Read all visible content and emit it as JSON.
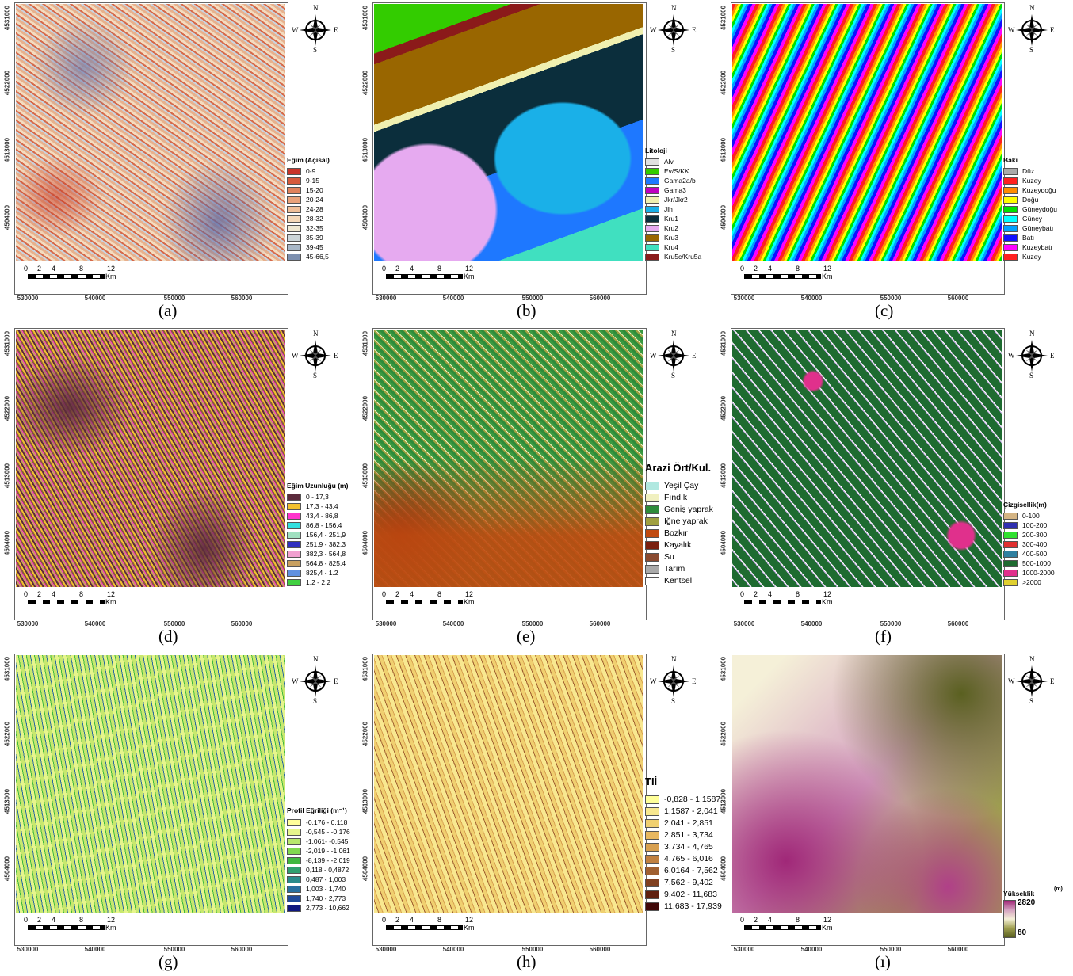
{
  "axes": {
    "y_ticks": [
      "4531000",
      "4522000",
      "4513000",
      "4504000"
    ],
    "x_ticks": [
      "530000",
      "540000",
      "550000",
      "560000"
    ]
  },
  "scale_bar": {
    "labels": [
      "0",
      "2",
      "4",
      "8",
      "12"
    ],
    "unit": "Km"
  },
  "compass": {
    "north": "N",
    "south": "S",
    "west": "W",
    "east": "E"
  },
  "panels": [
    {
      "caption": "(a)",
      "legend_title": "Eğim (Açısal)",
      "legend_items": [
        {
          "label": "0-9",
          "color": "#c8342a"
        },
        {
          "label": "9-15",
          "color": "#d65a3c"
        },
        {
          "label": "15-20",
          "color": "#e0825c"
        },
        {
          "label": "20-24",
          "color": "#e9a27a"
        },
        {
          "label": "24-28",
          "color": "#f0bf98"
        },
        {
          "label": "28-32",
          "color": "#f5d8b8"
        },
        {
          "label": "32-35",
          "color": "#efe8d2"
        },
        {
          "label": "35-39",
          "color": "#ccd5d8"
        },
        {
          "label": "39-45",
          "color": "#a9b8c8"
        },
        {
          "label": "45-66,5",
          "color": "#7d90b0"
        }
      ]
    },
    {
      "caption": "(b)",
      "legend_title": "Litoloji",
      "legend_items": [
        {
          "label": "Alv",
          "color": "#e0e0e0"
        },
        {
          "label": "Ev/S/KK",
          "color": "#33cc00"
        },
        {
          "label": "Gama2a/b",
          "color": "#1e78ff"
        },
        {
          "label": "Gama3",
          "color": "#c000c0"
        },
        {
          "label": "Jkr/Jkr2",
          "color": "#f0f0b0"
        },
        {
          "label": "Jlh",
          "color": "#1ab0e8"
        },
        {
          "label": "Kru1",
          "color": "#0b2e3c"
        },
        {
          "label": "Kru2",
          "color": "#e6aaf0"
        },
        {
          "label": "Kru3",
          "color": "#996600"
        },
        {
          "label": "Kru4",
          "color": "#40e0c0"
        },
        {
          "label": "Kru5c/Kru5a",
          "color": "#8b1a1a"
        }
      ]
    },
    {
      "caption": "(c)",
      "legend_title": "Bakı",
      "legend_items": [
        {
          "label": "Düz",
          "color": "#aaaaaa"
        },
        {
          "label": "Kuzey",
          "color": "#ff2020"
        },
        {
          "label": "Kuzeydoğu",
          "color": "#ff8c00"
        },
        {
          "label": "Doğu",
          "color": "#ffff00"
        },
        {
          "label": "Güneydoğu",
          "color": "#00e000"
        },
        {
          "label": "Güney",
          "color": "#00ffff"
        },
        {
          "label": "Güneybatı",
          "color": "#00a0ff"
        },
        {
          "label": "Batı",
          "color": "#1010ff"
        },
        {
          "label": "Kuzeybatı",
          "color": "#ff00ff"
        },
        {
          "label": "Kuzey",
          "color": "#ff2020"
        }
      ]
    },
    {
      "caption": "(d)",
      "legend_title": "Eğim Uzunluğu (m)",
      "legend_items": [
        {
          "label": "0 - 17,3",
          "color": "#5c2a3c"
        },
        {
          "label": "17,3 - 43,4",
          "color": "#f2c12e"
        },
        {
          "label": "43,4 - 86,8",
          "color": "#ff33cc"
        },
        {
          "label": "86,8 - 156,4",
          "color": "#33e0e0"
        },
        {
          "label": "156,4 - 251,9",
          "color": "#a0e0c0"
        },
        {
          "label": "251,9 - 382,3",
          "color": "#3030c0"
        },
        {
          "label": "382,3 - 564,8",
          "color": "#f0a0d0"
        },
        {
          "label": "564,8 - 825,4",
          "color": "#c8a060"
        },
        {
          "label": "825,4 - 1.2",
          "color": "#6090e0"
        },
        {
          "label": "1.2 - 2.2",
          "color": "#40d040"
        }
      ]
    },
    {
      "caption": "(e)",
      "legend_title": "Arazi Ört/Kul.",
      "legend_items": [
        {
          "label": "Yeşil Çay",
          "color": "#b0e8e0"
        },
        {
          "label": "Fındık",
          "color": "#f0f0c0"
        },
        {
          "label": "Geniş yaprak",
          "color": "#2e8b3a"
        },
        {
          "label": "İğne yaprak",
          "color": "#a0a040"
        },
        {
          "label": "Bozkır",
          "color": "#c04a10"
        },
        {
          "label": "Kayalık",
          "color": "#7a2010"
        },
        {
          "label": "Su",
          "color": "#8a4a30"
        },
        {
          "label": "Tarım",
          "color": "#aaaaaa"
        },
        {
          "label": "Kentsel",
          "color": "#ffffff"
        }
      ]
    },
    {
      "caption": "(f)",
      "legend_title": "Çizgisellik(m)",
      "legend_items": [
        {
          "label": "0-100",
          "color": "#d4b483"
        },
        {
          "label": "100-200",
          "color": "#3030b0"
        },
        {
          "label": "200-300",
          "color": "#30e030"
        },
        {
          "label": "300-400",
          "color": "#e03030"
        },
        {
          "label": "400-500",
          "color": "#3080a0"
        },
        {
          "label": "500-1000",
          "color": "#1e6b30"
        },
        {
          "label": "1000-2000",
          "color": "#e0308c"
        },
        {
          "label": ">2000",
          "color": "#e0d030"
        }
      ]
    },
    {
      "caption": "(g)",
      "legend_title": "Profil Eğriliği (m⁻¹)",
      "legend_items": [
        {
          "label": "-0,176 - 0,118",
          "color": "#ffff99"
        },
        {
          "label": "-0,545 - -0,176",
          "color": "#e6f58c"
        },
        {
          "label": "-1,061- -0,545",
          "color": "#b8e86e"
        },
        {
          "label": "-2,019 - -1,061",
          "color": "#80d850"
        },
        {
          "label": "-8,139 - -2,019",
          "color": "#40b840"
        },
        {
          "label": "0,118 - 0,4872",
          "color": "#30a070"
        },
        {
          "label": "0,487 - 1,003",
          "color": "#2a8c8c"
        },
        {
          "label": "1,003 - 1,740",
          "color": "#2870a0"
        },
        {
          "label": "1,740 - 2,773",
          "color": "#204a9a"
        },
        {
          "label": "2,773 - 10,662",
          "color": "#101880"
        }
      ]
    },
    {
      "caption": "(h)",
      "legend_title": "TIİ",
      "legend_items": [
        {
          "label": "-0,828 - 1,1587",
          "color": "#ffff99"
        },
        {
          "label": "1,1587 - 2,041",
          "color": "#f8e890"
        },
        {
          "label": "2,041 - 2,851",
          "color": "#f0d070"
        },
        {
          "label": "2,851 - 3,734",
          "color": "#e8b860"
        },
        {
          "label": "3,734 - 4,765",
          "color": "#d8a050"
        },
        {
          "label": "4,765 - 6,016",
          "color": "#c08040"
        },
        {
          "label": "6,0164 - 7,562",
          "color": "#a06030"
        },
        {
          "label": "7,562 - 9,402",
          "color": "#804020"
        },
        {
          "label": "9,402 - 11,683",
          "color": "#602010"
        },
        {
          "label": "11,683 - 17,939",
          "color": "#400808"
        }
      ]
    },
    {
      "caption": "(ı)",
      "legend_title": "Yükseklik",
      "legend_unit": "(m)",
      "ramp": {
        "max": "2820",
        "min": "80",
        "colors": [
          "#a02878",
          "#d4a0c0",
          "#f5f0d8",
          "#a0a050",
          "#5a6020"
        ]
      }
    }
  ]
}
